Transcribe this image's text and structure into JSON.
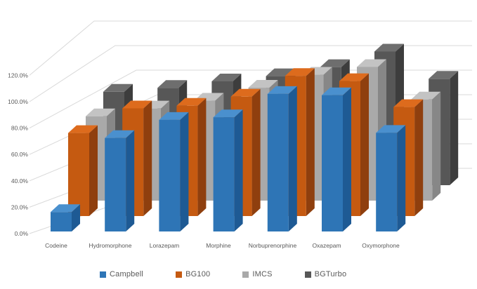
{
  "chart_data": {
    "type": "bar",
    "variant": "3d-clustered-column",
    "title": "",
    "xlabel": "",
    "ylabel": "",
    "unit": "%",
    "ylim": [
      0,
      120
    ],
    "grid": true,
    "legend_position": "bottom",
    "background_color": "#FFFFFF",
    "gridline_color": "#D9D9D9",
    "text_color": "#595959",
    "y_ticks": [
      "0.0%",
      "20.0%",
      "40.0%",
      "60.0%",
      "80.0%",
      "100.0%",
      "120.0%"
    ],
    "categories": [
      "Codeine",
      "Hydromorphone",
      "Lorazepam",
      "Morphine",
      "Norbuprenorphine",
      "Oxazepam",
      "Oxymorphone"
    ],
    "series": [
      {
        "name": "Campbell",
        "color": "#2E75B6",
        "color_top": "#4A90CE",
        "color_side": "#1E5A94",
        "values": [
          15,
          72,
          86,
          88,
          106,
          105,
          76
        ]
      },
      {
        "name": "BG100",
        "color": "#C55A11",
        "color_top": "#DD6B1D",
        "color_side": "#8F3F0E",
        "values": [
          64,
          83,
          85,
          92,
          108,
          104,
          84
        ]
      },
      {
        "name": "IMCS",
        "color": "#A9A9A9",
        "color_top": "#C3C3C3",
        "color_side": "#878787",
        "values": [
          65,
          71,
          77,
          87,
          97,
          103,
          78
        ]
      },
      {
        "name": "BGTurbo",
        "color": "#575757",
        "color_top": "#6E6E6E",
        "color_side": "#3D3D3D",
        "values": [
          72,
          75,
          80,
          84,
          91,
          103,
          82
        ]
      }
    ]
  }
}
